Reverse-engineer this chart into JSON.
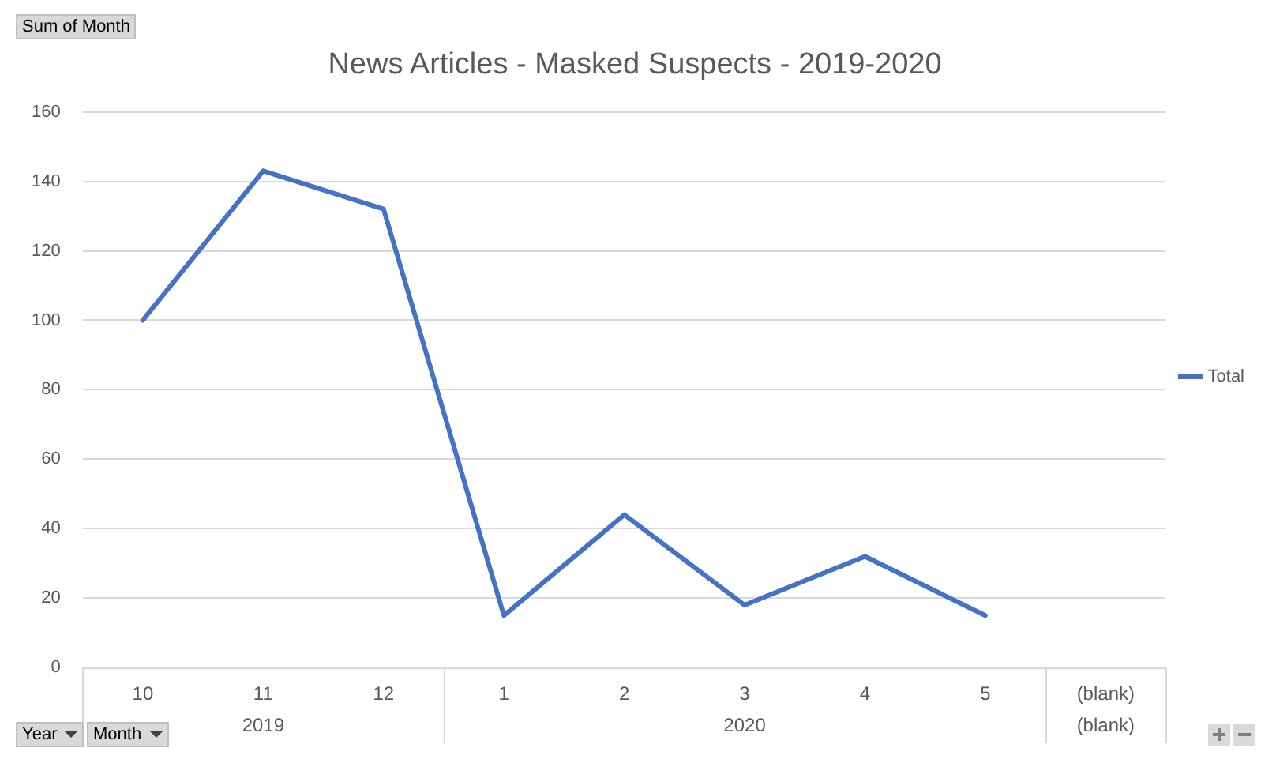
{
  "chart_data": {
    "type": "line",
    "title": "News Articles - Masked Suspects - 2019-2020",
    "categories": [
      "10",
      "11",
      "12",
      "1",
      "2",
      "3",
      "4",
      "5",
      "(blank)"
    ],
    "series": [
      {
        "name": "Total",
        "color": "#4472c4",
        "values": [
          100,
          143,
          132,
          15,
          44,
          18,
          32,
          15,
          null
        ]
      }
    ],
    "ylim": [
      0,
      160
    ],
    "yticks": [
      0,
      20,
      40,
      60,
      80,
      100,
      120,
      140,
      160
    ],
    "grid": "y",
    "legend": "right",
    "marker": "none",
    "line_style": "solid",
    "annotations": [
      "Sum of Month",
      "Year",
      "Month",
      "2019",
      "2020",
      "(blank)"
    ]
  }
}
